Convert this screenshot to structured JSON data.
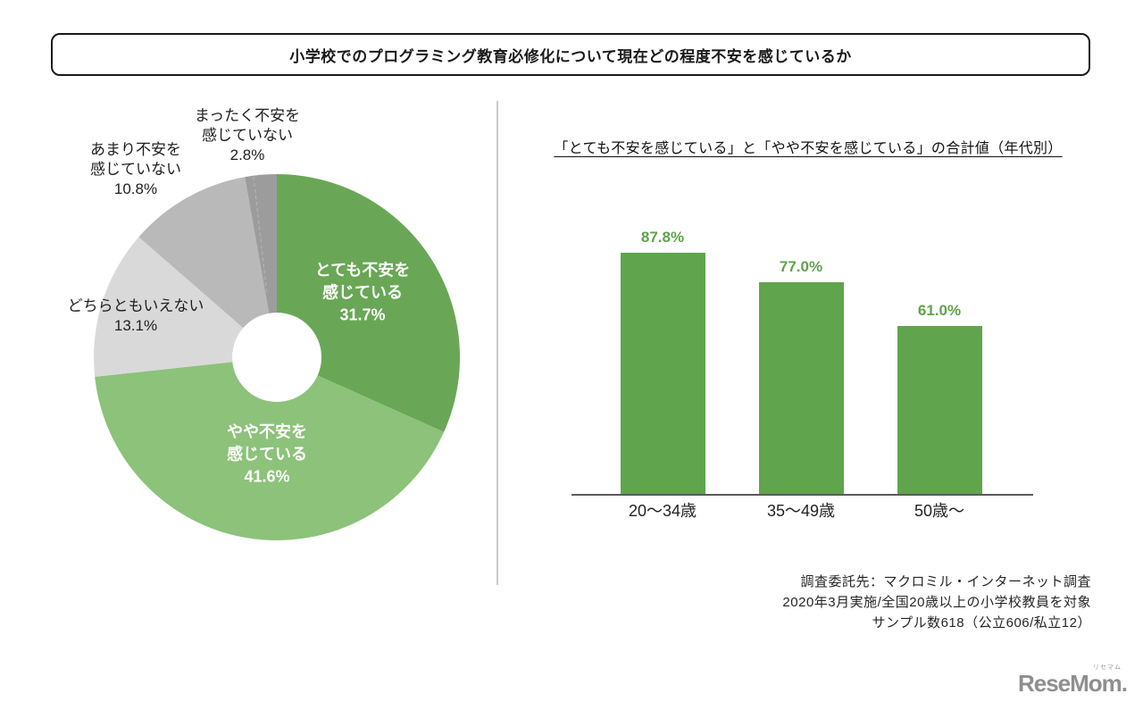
{
  "header": {
    "title": "小学校でのプログラミング教育必修化について現在どの程度不安を感じているか"
  },
  "chart_data": [
    {
      "type": "pie",
      "donut": true,
      "title": "",
      "categories": [
        "とても不安を感じている",
        "やや不安を感じている",
        "どちらともいえない",
        "あまり不安を感じていない",
        "まったく不安を感じていない"
      ],
      "values": [
        31.7,
        41.6,
        13.1,
        10.8,
        2.8
      ],
      "unit": "%",
      "start_angle_deg": 0,
      "direction": "clockwise",
      "slices": [
        {
          "label_lines": [
            "とても不安を",
            "感じている"
          ],
          "pct_label": "31.7%",
          "value": 31.7,
          "color": "#69A756",
          "label_style": "inside"
        },
        {
          "label_lines": [
            "やや不安を",
            "感じている"
          ],
          "pct_label": "41.6%",
          "value": 41.6,
          "color": "#8CC27A",
          "label_style": "inside"
        },
        {
          "label_lines": [
            "どちらともいえない"
          ],
          "pct_label": "13.1%",
          "value": 13.1,
          "color": "#D9D9D9",
          "label_style": "outside"
        },
        {
          "label_lines": [
            "あまり不安を",
            "感じていない"
          ],
          "pct_label": "10.8%",
          "value": 10.8,
          "color": "#B9B9B9",
          "label_style": "outside"
        },
        {
          "label_lines": [
            "まったく不安を",
            "感じていない"
          ],
          "pct_label": "2.8%",
          "value": 2.8,
          "color": "#9C9C9C",
          "label_style": "outside"
        }
      ]
    },
    {
      "type": "bar",
      "title": "「とても不安を感じている」と「やや不安を感じている」の合計値（年代別）",
      "categories": [
        "20〜34歳",
        "35〜49歳",
        "50歳〜"
      ],
      "values": [
        87.8,
        77.0,
        61.0
      ],
      "value_labels": [
        "87.8%",
        "77.0%",
        "61.0%"
      ],
      "ylim": [
        0,
        100
      ],
      "grid": false,
      "legend": false,
      "bar_color": "#60A44D",
      "value_label_color": "#5FA24B"
    }
  ],
  "footnote": {
    "lines": [
      "調査委託先：マクロミル・インターネット調査",
      "2020年3月実施/全国20歳以上の小学校教員を対象",
      "サンプル数618（公立606/私立12）"
    ]
  },
  "logo": {
    "kana": "リセマム",
    "text": "ReseMom.",
    "color": "#8f8f8f"
  }
}
